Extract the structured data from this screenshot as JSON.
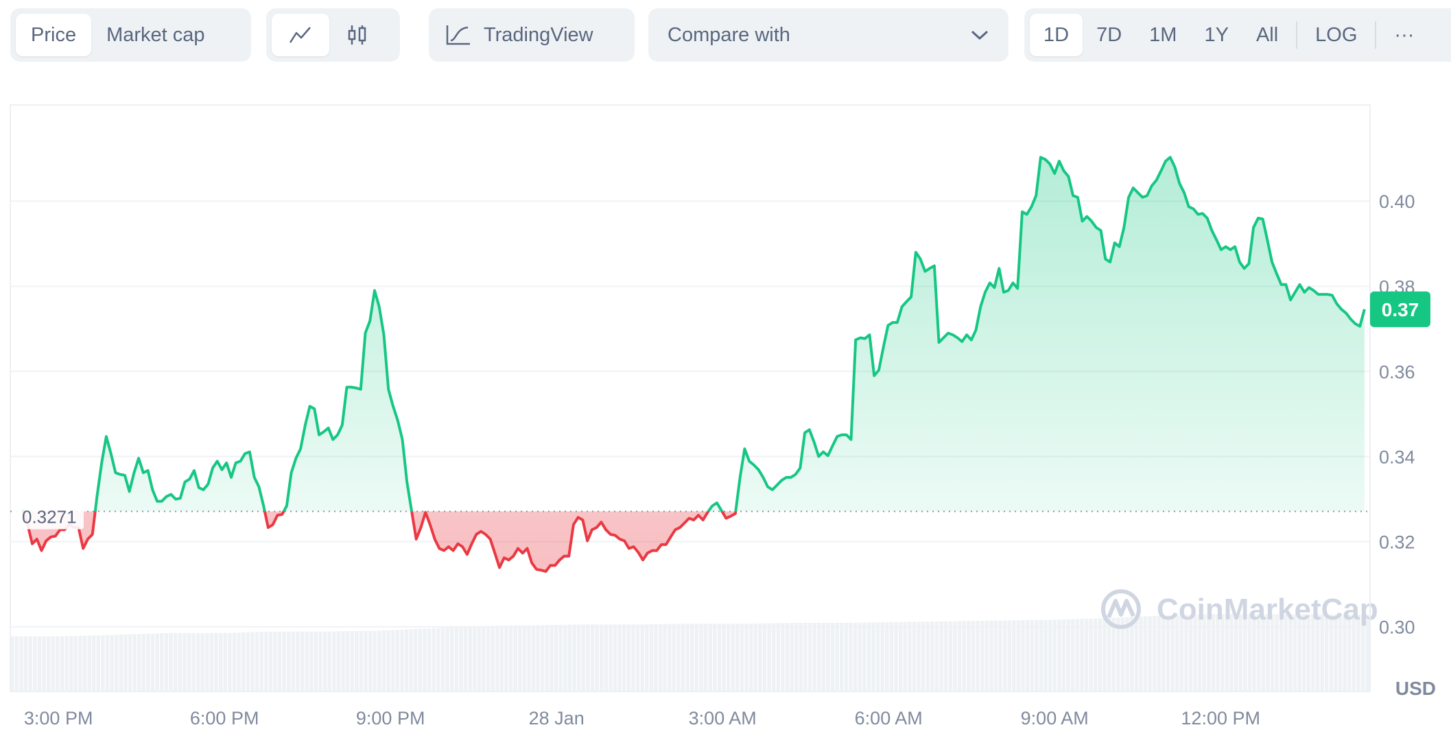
{
  "toolbar": {
    "mode_tabs": [
      {
        "label": "Price",
        "active": true
      },
      {
        "label": "Market cap",
        "active": false
      }
    ],
    "chart_types": [
      {
        "icon": "line-chart-icon",
        "active": true
      },
      {
        "icon": "candlestick-icon",
        "active": false
      }
    ],
    "tradingview_label": "TradingView",
    "compare_label": "Compare with",
    "ranges": [
      {
        "label": "1D",
        "active": true
      },
      {
        "label": "7D"
      },
      {
        "label": "1M"
      },
      {
        "label": "1Y"
      },
      {
        "label": "All"
      }
    ],
    "log_label": "LOG",
    "more_label": "···"
  },
  "colors": {
    "up": "#16c784",
    "down": "#ea3943",
    "axis_text": "#808a9d",
    "grid": "#eff2f5",
    "volume": "#eff2f5",
    "watermark": "#cfd6e2"
  },
  "watermark": "CoinMarketCap",
  "chart_data": {
    "type": "area",
    "title": "",
    "xlabel": "",
    "ylabel": "USD",
    "currency_label": "USD",
    "baseline": 0.3271,
    "baseline_label": "0.3271",
    "current_price_label": "0.37",
    "ylim": [
      0.2848,
      0.4226
    ],
    "yticks": [
      {
        "value": 0.4,
        "label": "0.40"
      },
      {
        "value": 0.38,
        "label": "0.38"
      },
      {
        "value": 0.36,
        "label": "0.36"
      },
      {
        "value": 0.34,
        "label": "0.34"
      },
      {
        "value": 0.32,
        "label": "0.32"
      },
      {
        "value": 0.3,
        "label": "0.30"
      }
    ],
    "xlim_hours_from_3pm": [
      -0.87,
      23.7
    ],
    "xticks": [
      {
        "hours": 0,
        "label": "3:00 PM"
      },
      {
        "hours": 3,
        "label": "6:00 PM"
      },
      {
        "hours": 6,
        "label": "9:00 PM"
      },
      {
        "hours": 9,
        "label": "28 Jan"
      },
      {
        "hours": 12,
        "label": "3:00 AM"
      },
      {
        "hours": 15,
        "label": "6:00 AM"
      },
      {
        "hours": 18,
        "label": "9:00 AM"
      },
      {
        "hours": 21,
        "label": "12:00 PM"
      }
    ],
    "series_start_hours": -0.64,
    "series_end_hours": 23.6,
    "grid": true,
    "prices": [
      0.3277,
      0.324,
      0.3195,
      0.3206,
      0.3179,
      0.3202,
      0.3211,
      0.3213,
      0.3228,
      0.3228,
      0.324,
      0.3233,
      0.3233,
      0.3184,
      0.3206,
      0.3217,
      0.3306,
      0.3385,
      0.3447,
      0.3407,
      0.3362,
      0.3358,
      0.3356,
      0.3318,
      0.3362,
      0.3396,
      0.3362,
      0.3367,
      0.3322,
      0.3295,
      0.3295,
      0.3306,
      0.3311,
      0.33,
      0.3302,
      0.334,
      0.3347,
      0.3367,
      0.3327,
      0.3322,
      0.3335,
      0.3373,
      0.3389,
      0.3369,
      0.3385,
      0.3351,
      0.3385,
      0.3389,
      0.3407,
      0.3411,
      0.3351,
      0.3329,
      0.3284,
      0.3233,
      0.324,
      0.3262,
      0.3264,
      0.3284,
      0.3362,
      0.3396,
      0.3418,
      0.3474,
      0.3518,
      0.3512,
      0.3451,
      0.3458,
      0.3467,
      0.344,
      0.3451,
      0.3474,
      0.3563,
      0.3563,
      0.3561,
      0.3558,
      0.369,
      0.3719,
      0.379,
      0.3752,
      0.3686,
      0.3558,
      0.3518,
      0.3485,
      0.344,
      0.334,
      0.3273,
      0.3206,
      0.3233,
      0.3269,
      0.324,
      0.3206,
      0.3184,
      0.3179,
      0.3188,
      0.3179,
      0.3195,
      0.3188,
      0.317,
      0.3195,
      0.3217,
      0.3224,
      0.3217,
      0.3206,
      0.3173,
      0.3139,
      0.3162,
      0.3157,
      0.3166,
      0.3184,
      0.3173,
      0.3184,
      0.315,
      0.3135,
      0.3133,
      0.313,
      0.3144,
      0.3144,
      0.3157,
      0.3166,
      0.3166,
      0.324,
      0.3257,
      0.3251,
      0.3202,
      0.3228,
      0.3233,
      0.3246,
      0.3228,
      0.3217,
      0.3215,
      0.3206,
      0.3202,
      0.3184,
      0.3188,
      0.3175,
      0.3157,
      0.3173,
      0.3179,
      0.3179,
      0.3193,
      0.3193,
      0.3211,
      0.3228,
      0.3233,
      0.3244,
      0.3255,
      0.3251,
      0.3262,
      0.3251,
      0.3269,
      0.3284,
      0.3291,
      0.3273,
      0.3255,
      0.326,
      0.3266,
      0.3351,
      0.3418,
      0.3389,
      0.338,
      0.3369,
      0.3351,
      0.3329,
      0.3322,
      0.3333,
      0.3344,
      0.3351,
      0.3351,
      0.3358,
      0.3373,
      0.3456,
      0.3463,
      0.3434,
      0.34,
      0.3411,
      0.3402,
      0.3425,
      0.3447,
      0.3451,
      0.3451,
      0.344,
      0.3674,
      0.3679,
      0.3677,
      0.3686,
      0.359,
      0.3603,
      0.3657,
      0.3708,
      0.3715,
      0.3715,
      0.3752,
      0.3764,
      0.3775,
      0.388,
      0.3864,
      0.3835,
      0.3842,
      0.3848,
      0.3668,
      0.3679,
      0.369,
      0.3686,
      0.3679,
      0.367,
      0.3686,
      0.3674,
      0.3697,
      0.3752,
      0.3786,
      0.3808,
      0.3797,
      0.3842,
      0.3786,
      0.379,
      0.3808,
      0.3795,
      0.3975,
      0.3969,
      0.3987,
      0.4013,
      0.4103,
      0.4098,
      0.4087,
      0.4065,
      0.4094,
      0.4071,
      0.4058,
      0.4013,
      0.4009,
      0.3953,
      0.3964,
      0.3953,
      0.3938,
      0.3931,
      0.3864,
      0.3857,
      0.3902,
      0.3893,
      0.3938,
      0.4009,
      0.4031,
      0.402,
      0.4009,
      0.4013,
      0.4036,
      0.4049,
      0.4071,
      0.4094,
      0.4103,
      0.408,
      0.4042,
      0.402,
      0.3987,
      0.3982,
      0.3969,
      0.3971,
      0.396,
      0.3931,
      0.3909,
      0.3886,
      0.3893,
      0.3886,
      0.3893,
      0.3857,
      0.3842,
      0.3853,
      0.3938,
      0.396,
      0.3958,
      0.3909,
      0.3857,
      0.383,
      0.3804,
      0.3804,
      0.3768,
      0.3786,
      0.3804,
      0.3786,
      0.3797,
      0.379,
      0.3781,
      0.3781,
      0.3781,
      0.3779,
      0.3759,
      0.3746,
      0.3737,
      0.3723,
      0.3712,
      0.3706,
      0.3746
    ],
    "volume_relative": [
      0.7,
      0.7,
      0.72,
      0.74,
      0.74,
      0.76,
      0.76,
      0.77,
      0.8,
      0.83,
      0.84,
      0.85,
      0.85,
      0.86,
      0.86,
      0.87,
      0.87,
      0.88,
      0.89,
      0.9,
      0.91,
      0.93,
      0.96,
      0.98,
      0.98,
      0.98,
      0.97
    ]
  }
}
